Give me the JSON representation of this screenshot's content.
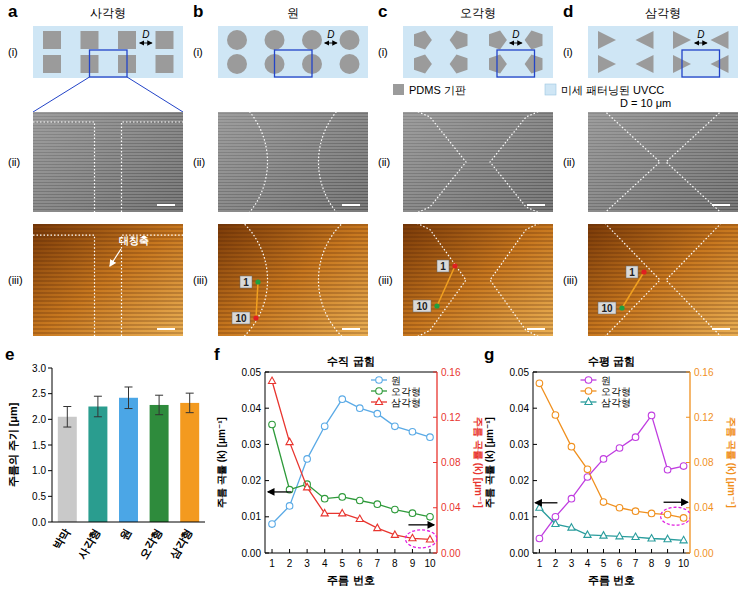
{
  "panels": [
    {
      "letter": "a",
      "title": "사각형",
      "rows": [
        "(i)",
        "(ii)",
        "(iii)"
      ],
      "gap_label": "D",
      "annotation": "대칭축"
    },
    {
      "letter": "b",
      "title": "원",
      "rows": [
        "(i)",
        "(ii)",
        "(iii)"
      ],
      "gap_label": "D",
      "points": [
        "1",
        "10"
      ]
    },
    {
      "letter": "c",
      "title": "오각형",
      "rows": [
        "(i)",
        "(ii)",
        "(iii)"
      ],
      "gap_label": "D",
      "points": [
        "1",
        "10"
      ]
    },
    {
      "letter": "d",
      "title": "삼각형",
      "rows": [
        "(i)",
        "(ii)",
        "(iii)"
      ],
      "gap_label": "D",
      "points": [
        "1",
        "10"
      ]
    }
  ],
  "legend": {
    "items": [
      "PDMS 기판",
      "미세 패터닝된 UVCC"
    ],
    "note": "D = 10 μm"
  },
  "chart_data": [
    {
      "letter": "e",
      "type": "bar",
      "ylabel": "주름의 주기 [μm]",
      "categories": [
        "박막",
        "사각형",
        "원",
        "오각형",
        "삼각형"
      ],
      "values": [
        2.05,
        2.25,
        2.42,
        2.28,
        2.32
      ],
      "errors": [
        0.2,
        0.2,
        0.21,
        0.19,
        0.19
      ],
      "colors": [
        "#c9c9c9",
        "#2a9d8f",
        "#4ba6e6",
        "#2e8b3c",
        "#f39a1f"
      ],
      "ylim": [
        0,
        3
      ],
      "yticks": [
        {
          "value": 0,
          "label": "0.0"
        },
        0.5,
        {
          "value": 1,
          "label": "1.0"
        },
        1.5,
        {
          "value": 2,
          "label": "2.0"
        },
        2.5,
        {
          "value": 3,
          "label": "3.0"
        }
      ],
      "grid": false
    },
    {
      "letter": "f",
      "type": "line",
      "title": "수직 굽힘",
      "xlabel": "주름 번호",
      "ylabel": "주름 곡률 (k) [μm⁻¹]",
      "y2label": "주름 곡률 (k) [μm⁻¹]",
      "x": [
        1,
        2,
        3,
        4,
        5,
        6,
        7,
        8,
        9,
        10
      ],
      "xlim": [
        0.6,
        10.4
      ],
      "xticks": [
        1,
        2,
        3,
        4,
        5,
        6,
        7,
        8,
        9,
        10
      ],
      "ylim": [
        0,
        0.05
      ],
      "yticks": [
        {
          "value": 0,
          "label": "0.00"
        },
        0.01,
        0.02,
        0.03,
        0.04,
        0.05
      ],
      "y2lim": [
        0,
        0.16
      ],
      "y2ticks": [
        {
          "value": 0,
          "label": "0.00"
        },
        0.04,
        0.08,
        0.12,
        0.16
      ],
      "grid": false,
      "legend": "upper right",
      "series": [
        {
          "name": "원",
          "color": "#5aaae6",
          "marker": "circle",
          "line_style": "solid",
          "values": [
            0.008,
            0.013,
            0.026,
            0.035,
            0.0425,
            0.04,
            0.0385,
            0.035,
            0.0335,
            0.032
          ]
        },
        {
          "name": "오각형",
          "color": "#2e9a3a",
          "marker": "circle",
          "line_style": "solid",
          "values": [
            0.0355,
            0.0175,
            0.019,
            0.015,
            0.0155,
            0.0145,
            0.0135,
            0.012,
            0.011,
            0.01
          ]
        },
        {
          "name": "삼각형",
          "color": "#e8352f",
          "marker": "triangle",
          "line_style": "solid",
          "axis": "y2",
          "values": [
            0.152,
            0.098,
            0.058,
            0.035,
            0.035,
            0.03,
            0.022,
            0.016,
            0.013,
            0.012
          ]
        }
      ]
    },
    {
      "letter": "g",
      "type": "line",
      "title": "수평 굽힘",
      "xlabel": "주름 번호",
      "ylabel": "주름 곡률 (k) [μm⁻¹]",
      "y2label": "주름 곡률 (k) [μm⁻¹]",
      "x": [
        1,
        2,
        3,
        4,
        5,
        6,
        7,
        8,
        9,
        10
      ],
      "xlim": [
        0.6,
        10.4
      ],
      "xticks": [
        1,
        2,
        3,
        4,
        5,
        6,
        7,
        8,
        9,
        10
      ],
      "ylim": [
        0,
        0.05
      ],
      "yticks": [
        {
          "value": 0,
          "label": "0.00"
        },
        0.01,
        0.02,
        0.03,
        0.04,
        0.05
      ],
      "y2lim": [
        0,
        0.16
      ],
      "y2ticks": [
        {
          "value": 0,
          "label": "0.00"
        },
        0.04,
        0.08,
        0.12,
        0.16
      ],
      "grid": false,
      "legend": "upper center",
      "series": [
        {
          "name": "원",
          "color": "#c03de0",
          "marker": "circle",
          "line_style": "solid",
          "values": [
            0.004,
            0.01,
            0.015,
            0.021,
            0.026,
            0.029,
            0.032,
            0.038,
            0.023,
            0.024
          ]
        },
        {
          "name": "오각형",
          "color": "#f0901e",
          "marker": "circle",
          "line_style": "solid",
          "axis": "y2",
          "values": [
            0.15,
            0.122,
            0.094,
            0.074,
            0.045,
            0.04,
            0.037,
            0.035,
            0.034,
            0.031
          ]
        },
        {
          "name": "삼각형",
          "color": "#2a9d9d",
          "marker": "triangle",
          "line_style": "solid",
          "values": [
            0.0125,
            0.008,
            0.007,
            0.005,
            0.0048,
            0.0046,
            0.0044,
            0.004,
            0.0038,
            0.0035
          ]
        }
      ]
    }
  ]
}
